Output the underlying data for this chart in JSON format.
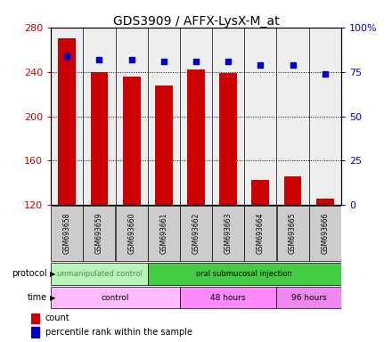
{
  "title": "GDS3909 / AFFX-LysX-M_at",
  "samples": [
    "GSM693658",
    "GSM693659",
    "GSM693660",
    "GSM693661",
    "GSM693662",
    "GSM693663",
    "GSM693664",
    "GSM693665",
    "GSM693666"
  ],
  "bar_values": [
    270,
    240,
    236,
    228,
    242,
    239,
    143,
    146,
    126
  ],
  "percentile_values": [
    84,
    82,
    82,
    81,
    81,
    81,
    79,
    79,
    74
  ],
  "ylim_left": [
    120,
    280
  ],
  "ylim_right": [
    0,
    100
  ],
  "yticks_left": [
    120,
    160,
    200,
    240,
    280
  ],
  "yticks_right": [
    0,
    25,
    50,
    75,
    100
  ],
  "bar_color": "#cc0000",
  "dot_color": "#0000cc",
  "grid_color": "#000000",
  "light_green": "#b8f4b8",
  "dark_green": "#44cc44",
  "pink": "#ffbbff",
  "sample_box_color": "#cccccc",
  "bg_color": "#ffffff",
  "plot_bg_color": "#eeeeee",
  "legend_count_color": "#cc0000",
  "legend_dot_color": "#0000cc",
  "left_tick_color": "#cc0000",
  "right_tick_color": "#0000cc",
  "protocol_groups": [
    {
      "label": "unmanipulated control",
      "start": 0,
      "end": 3,
      "color": "#b8f4b8",
      "text_color": "#558855"
    },
    {
      "label": "oral submucosal injection",
      "start": 3,
      "end": 9,
      "color": "#44cc44",
      "text_color": "#000000"
    }
  ],
  "time_groups": [
    {
      "label": "control",
      "start": 0,
      "end": 4,
      "color": "#ffbbff"
    },
    {
      "label": "48 hours",
      "start": 4,
      "end": 7,
      "color": "#ff88ff"
    },
    {
      "label": "96 hours",
      "start": 7,
      "end": 9,
      "color": "#ee88ee"
    }
  ]
}
